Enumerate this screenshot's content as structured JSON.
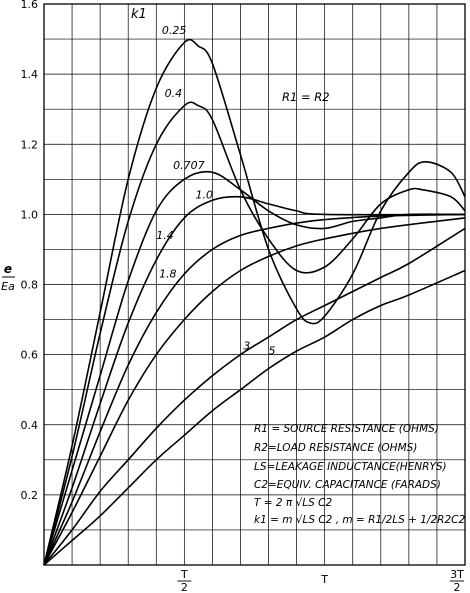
{
  "chart_data": {
    "type": "line",
    "title": "",
    "ylabel": {
      "num": "e",
      "den": "Ea"
    },
    "ylim": [
      0,
      1.6
    ],
    "yticks": [
      "0.2",
      "0.4",
      "0.6",
      "0.8",
      "1.0",
      "1.2",
      "1.4",
      "1.6"
    ],
    "xticks": [
      {
        "num": "T",
        "den": "2"
      },
      {
        "num": "T",
        "den": ""
      },
      {
        "num": "3T",
        "den": "2"
      }
    ],
    "grid": true,
    "series_header": "k1",
    "series": [
      {
        "name": "0.25",
        "points": [
          [
            0,
            0
          ],
          [
            0.1,
            0.34
          ],
          [
            0.2,
            0.72
          ],
          [
            0.3,
            1.1
          ],
          [
            0.4,
            1.36
          ],
          [
            0.5,
            1.49
          ],
          [
            0.55,
            1.48
          ],
          [
            0.6,
            1.43
          ],
          [
            0.7,
            1.17
          ],
          [
            0.8,
            0.9
          ],
          [
            0.9,
            0.73
          ],
          [
            0.95,
            0.69
          ],
          [
            1.0,
            0.71
          ],
          [
            1.1,
            0.83
          ],
          [
            1.2,
            1.01
          ],
          [
            1.3,
            1.12
          ],
          [
            1.36,
            1.15
          ],
          [
            1.45,
            1.12
          ],
          [
            1.5,
            1.05
          ]
        ]
      },
      {
        "name": "0.4",
        "points": [
          [
            0,
            0
          ],
          [
            0.1,
            0.31
          ],
          [
            0.2,
            0.66
          ],
          [
            0.3,
            0.98
          ],
          [
            0.4,
            1.2
          ],
          [
            0.5,
            1.31
          ],
          [
            0.55,
            1.31
          ],
          [
            0.6,
            1.27
          ],
          [
            0.7,
            1.07
          ],
          [
            0.8,
            0.93
          ],
          [
            0.9,
            0.84
          ],
          [
            1.0,
            0.85
          ],
          [
            1.1,
            0.93
          ],
          [
            1.2,
            1.03
          ],
          [
            1.3,
            1.07
          ],
          [
            1.35,
            1.07
          ],
          [
            1.45,
            1.05
          ],
          [
            1.5,
            1.01
          ]
        ]
      },
      {
        "name": "0.707",
        "points": [
          [
            0,
            0
          ],
          [
            0.1,
            0.27
          ],
          [
            0.2,
            0.54
          ],
          [
            0.3,
            0.81
          ],
          [
            0.4,
            1.01
          ],
          [
            0.5,
            1.1
          ],
          [
            0.6,
            1.12
          ],
          [
            0.7,
            1.07
          ],
          [
            0.8,
            1.01
          ],
          [
            0.9,
            0.97
          ],
          [
            1.0,
            0.96
          ],
          [
            1.1,
            0.98
          ],
          [
            1.2,
            0.99
          ],
          [
            1.3,
            1.0
          ],
          [
            1.5,
            1.0
          ]
        ]
      },
      {
        "name": "1.0",
        "points": [
          [
            0,
            0
          ],
          [
            0.1,
            0.22
          ],
          [
            0.2,
            0.46
          ],
          [
            0.3,
            0.69
          ],
          [
            0.4,
            0.87
          ],
          [
            0.5,
            0.99
          ],
          [
            0.6,
            1.04
          ],
          [
            0.7,
            1.05
          ],
          [
            0.8,
            1.03
          ],
          [
            0.9,
            1.01
          ],
          [
            1.0,
            1.0
          ],
          [
            1.5,
            1.0
          ]
        ]
      },
      {
        "name": "1.4",
        "points": [
          [
            0,
            0
          ],
          [
            0.1,
            0.18
          ],
          [
            0.2,
            0.38
          ],
          [
            0.3,
            0.57
          ],
          [
            0.4,
            0.72
          ],
          [
            0.5,
            0.83
          ],
          [
            0.6,
            0.9
          ],
          [
            0.7,
            0.94
          ],
          [
            0.8,
            0.96
          ],
          [
            0.9,
            0.975
          ],
          [
            1.0,
            0.985
          ],
          [
            1.2,
            0.995
          ],
          [
            1.5,
            1.0
          ]
        ]
      },
      {
        "name": "1.8",
        "points": [
          [
            0,
            0
          ],
          [
            0.1,
            0.15
          ],
          [
            0.2,
            0.31
          ],
          [
            0.3,
            0.47
          ],
          [
            0.4,
            0.6
          ],
          [
            0.5,
            0.7
          ],
          [
            0.6,
            0.78
          ],
          [
            0.7,
            0.84
          ],
          [
            0.8,
            0.88
          ],
          [
            0.9,
            0.91
          ],
          [
            1.0,
            0.93
          ],
          [
            1.2,
            0.96
          ],
          [
            1.5,
            0.99
          ]
        ]
      },
      {
        "name": "3",
        "points": [
          [
            0,
            0
          ],
          [
            0.1,
            0.1
          ],
          [
            0.2,
            0.21
          ],
          [
            0.3,
            0.3
          ],
          [
            0.4,
            0.39
          ],
          [
            0.5,
            0.47
          ],
          [
            0.6,
            0.54
          ],
          [
            0.7,
            0.6
          ],
          [
            0.8,
            0.65
          ],
          [
            0.9,
            0.7
          ],
          [
            1.0,
            0.74
          ],
          [
            1.1,
            0.78
          ],
          [
            1.2,
            0.82
          ],
          [
            1.3,
            0.86
          ],
          [
            1.5,
            0.96
          ]
        ]
      },
      {
        "name": "5",
        "points": [
          [
            0,
            0
          ],
          [
            0.1,
            0.07
          ],
          [
            0.2,
            0.14
          ],
          [
            0.3,
            0.22
          ],
          [
            0.4,
            0.3
          ],
          [
            0.5,
            0.37
          ],
          [
            0.6,
            0.44
          ],
          [
            0.7,
            0.5
          ],
          [
            0.8,
            0.56
          ],
          [
            0.9,
            0.61
          ],
          [
            1.0,
            0.65
          ],
          [
            1.1,
            0.7
          ],
          [
            1.2,
            0.74
          ],
          [
            1.3,
            0.77
          ],
          [
            1.5,
            0.84
          ]
        ]
      }
    ],
    "annotations": {
      "condition": "R1 = R2",
      "legend_lines": [
        "R1 = SOURCE RESISTANCE (OHMS)",
        "R2=LOAD RESISTANCE (OHMS)",
        "LS=LEAKAGE INDUCTANCE(HENRYS)",
        "C2=EQUIV. CAPACITANCE (FARADS)",
        "T = 2 π √LS C2",
        "k1 = m √LS C2 , m = R1/2LS + 1/2R2C2"
      ]
    }
  }
}
